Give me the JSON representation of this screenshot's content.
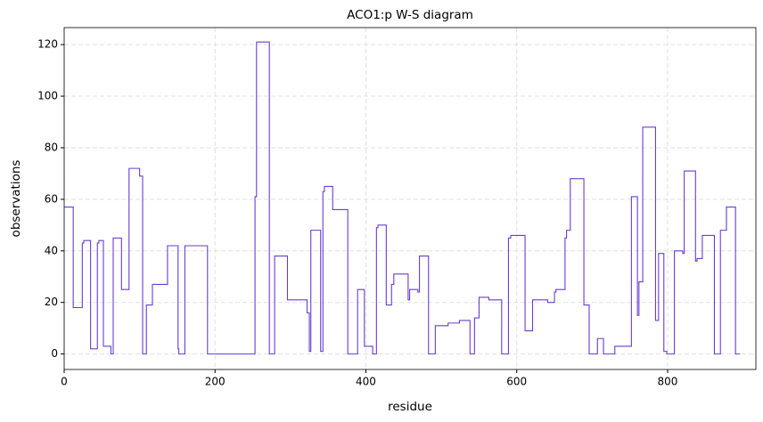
{
  "chart_data": {
    "type": "step",
    "title": "ACO1:p W-S diagram",
    "x_label": "residue",
    "y_label": "observations",
    "x": [
      0,
      12,
      24,
      26,
      35,
      44,
      46,
      52,
      59,
      62,
      65,
      76,
      86,
      100,
      104,
      109,
      117,
      137,
      151,
      152,
      160,
      190,
      253,
      255,
      272,
      279,
      296,
      322,
      325,
      327,
      340,
      343,
      345,
      356,
      376,
      389,
      398,
      409,
      414,
      416,
      427,
      434,
      437,
      456,
      458,
      469,
      471,
      483,
      492,
      509,
      524,
      538,
      544,
      550,
      563,
      580,
      589,
      592,
      611,
      621,
      641,
      650,
      652,
      664,
      666,
      671,
      689,
      696,
      707,
      715,
      730,
      752,
      760,
      762,
      767,
      784,
      788,
      795,
      799,
      809,
      820,
      822,
      837,
      839,
      846,
      862,
      870,
      878,
      890,
      896
    ],
    "values": [
      57,
      18,
      43,
      44,
      2,
      43,
      44,
      3,
      3,
      0,
      45,
      25,
      72,
      69,
      0,
      19,
      27,
      42,
      2,
      0,
      42,
      0,
      61,
      121,
      0,
      38,
      21,
      16,
      1,
      48,
      1,
      63,
      65,
      56,
      0,
      25,
      3,
      0,
      49,
      50,
      19,
      27,
      31,
      21,
      25,
      24,
      38,
      0,
      11,
      12,
      13,
      0,
      14,
      22,
      21,
      0,
      45,
      46,
      9,
      21,
      20,
      24,
      25,
      45,
      48,
      68,
      19,
      0,
      6,
      0,
      3,
      61,
      15,
      28,
      88,
      13,
      39,
      1,
      0,
      40,
      39,
      71,
      36,
      37,
      46,
      0,
      48,
      57,
      0,
      0
    ],
    "color": "#6a3dd1",
    "xlim": [
      0,
      917
    ],
    "ylim": [
      -6,
      126.6
    ],
    "xticks": [
      0,
      200,
      400,
      600,
      800
    ],
    "yticks": [
      0,
      20,
      40,
      60,
      80,
      100,
      120
    ],
    "grid": true
  }
}
